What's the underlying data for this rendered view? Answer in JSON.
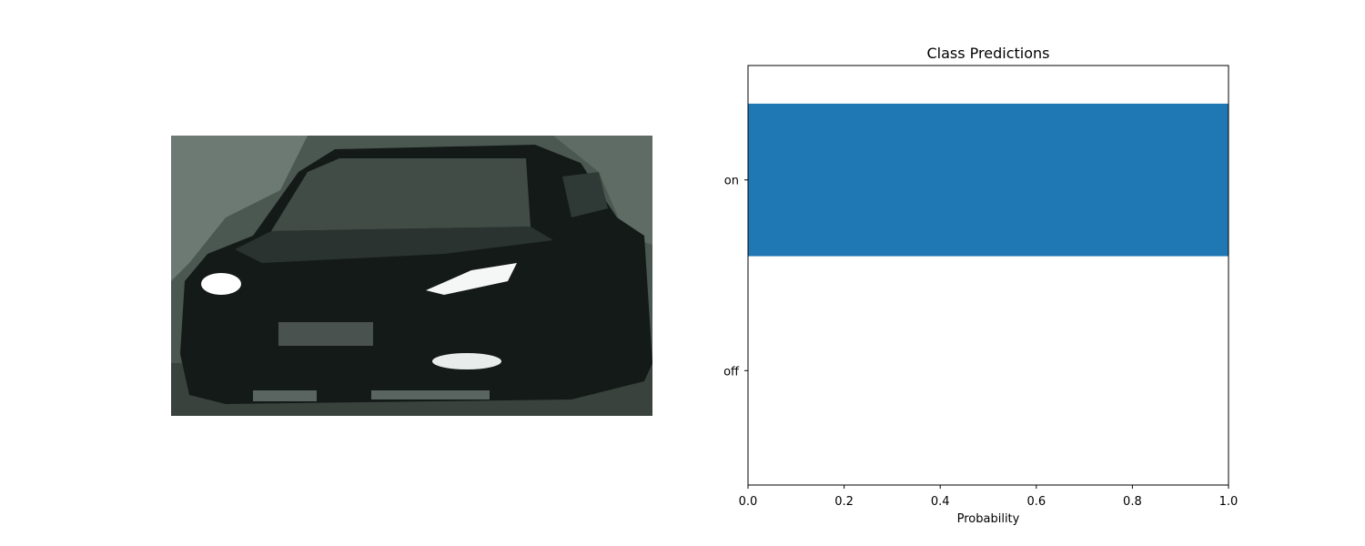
{
  "image_panel": {
    "subject": "black car front view with headlights",
    "colors": {
      "background": "#4a5650",
      "body": "#141a18",
      "windshield": "#3f4a45",
      "headlight": "#ffffff"
    }
  },
  "chart_data": {
    "type": "bar",
    "orientation": "horizontal",
    "title": "Class Predictions",
    "xlabel": "Probability",
    "ylabel": "",
    "categories": [
      "off",
      "on"
    ],
    "values": [
      0.0,
      1.0
    ],
    "xlim": [
      0,
      1
    ],
    "xticks": [
      "0.0",
      "0.2",
      "0.4",
      "0.6",
      "0.8",
      "1.0"
    ],
    "bar_color": "#1f77b4",
    "grid": false,
    "legend": "none"
  }
}
